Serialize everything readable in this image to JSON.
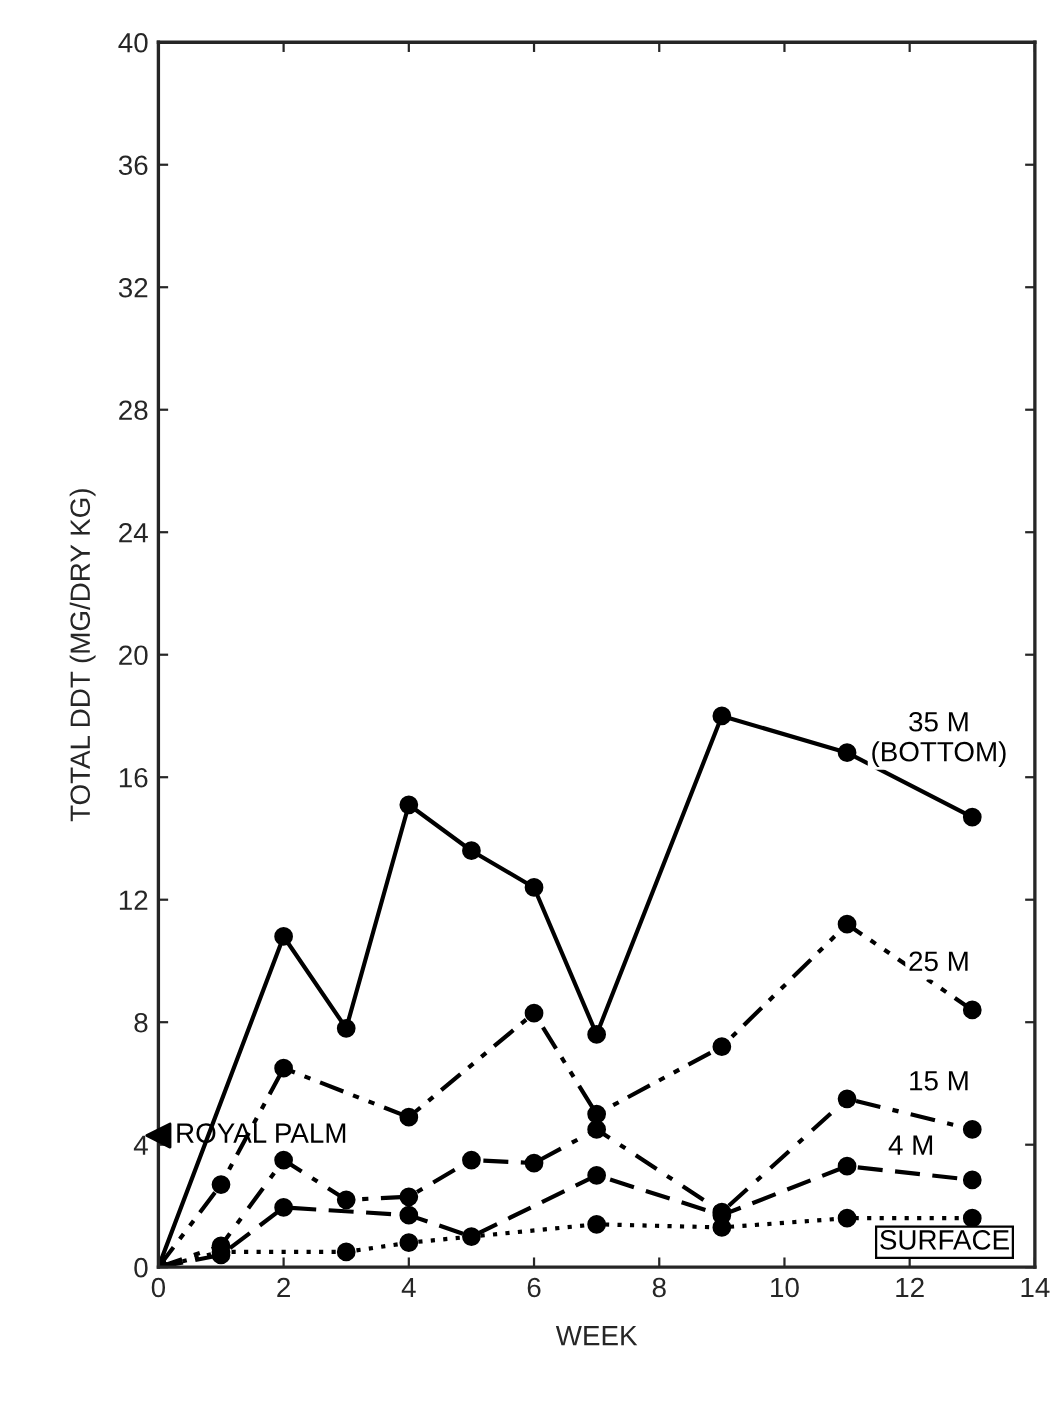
{
  "chart_data": {
    "type": "line",
    "xlabel": "WEEK",
    "ylabel": "TOTAL DDT (MG/DRY KG)",
    "xlim": [
      0,
      14
    ],
    "xticks": [
      0,
      2,
      4,
      6,
      8,
      10,
      12,
      14
    ],
    "ylim": [
      0,
      40
    ],
    "yticks": [
      0,
      4,
      8,
      12,
      16,
      20,
      24,
      28,
      32,
      36,
      40
    ],
    "grid": false,
    "legend": false,
    "marker": "circle",
    "series": [
      {
        "name": "35 M\n(BOTTOM)",
        "color": "#000000",
        "line_style": "solid",
        "x": [
          0,
          2,
          3,
          4,
          5,
          6,
          7,
          9,
          11,
          13
        ],
        "values": [
          0,
          10.8,
          7.8,
          15.1,
          13.6,
          12.4,
          7.6,
          18.0,
          16.8,
          14.7
        ]
      },
      {
        "name": "25 M",
        "color": "#000000",
        "line_style": "dashdotdot",
        "x": [
          0,
          1,
          2,
          4,
          6,
          7,
          9,
          11,
          13
        ],
        "values": [
          0,
          2.7,
          6.5,
          4.9,
          8.3,
          5.0,
          7.2,
          11.2,
          8.4
        ]
      },
      {
        "name": "15 M",
        "color": "#000000",
        "line_style": "dashdot",
        "x": [
          0,
          1,
          2,
          3,
          4,
          5,
          6,
          7,
          9,
          11,
          13
        ],
        "values": [
          0,
          0.7,
          3.5,
          2.2,
          2.3,
          3.5,
          3.4,
          4.5,
          1.8,
          5.5,
          4.5
        ]
      },
      {
        "name": "4 M",
        "color": "#000000",
        "line_style": "dashed",
        "x": [
          0,
          1,
          2,
          4,
          5,
          7,
          9,
          11,
          13
        ],
        "values": [
          0,
          0.4,
          1.95,
          1.7,
          1.0,
          3.0,
          1.7,
          3.3,
          2.85
        ]
      },
      {
        "name": "SURFACE",
        "color": "#000000",
        "line_style": "dotted",
        "x": [
          0,
          1,
          3,
          4,
          7,
          9,
          11,
          13
        ],
        "values": [
          0,
          0.5,
          0.5,
          0.8,
          1.4,
          1.3,
          1.6,
          1.6
        ]
      },
      {
        "name": "ROYAL PALM",
        "type": "scatter",
        "marker": "triangle",
        "color": "#000000",
        "x": [
          0
        ],
        "values": [
          4.3
        ]
      }
    ]
  }
}
